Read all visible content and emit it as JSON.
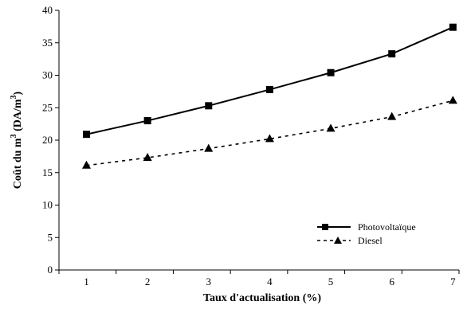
{
  "chart_data": {
    "type": "line",
    "title": "",
    "xlabel": "Taux d'actualisation (%)",
    "ylabel_main": "Coût du m",
    "ylabel_sup1": "3",
    "ylabel_mid": " (DA/m",
    "ylabel_sup2": "3",
    "ylabel_end": ")",
    "x": [
      1,
      2,
      3,
      4,
      5,
      6,
      7
    ],
    "xlim": [
      0.55,
      7.1
    ],
    "ylim": [
      0,
      40
    ],
    "yticks": [
      0,
      5,
      10,
      15,
      20,
      25,
      30,
      35,
      40
    ],
    "grid": false,
    "legend_position": "bottom-right",
    "series": [
      {
        "name": "Photovoltaïque",
        "marker": "square",
        "line": "solid",
        "color": "#000000",
        "values": [
          20.9,
          23.0,
          25.3,
          27.8,
          30.4,
          33.3,
          37.4
        ]
      },
      {
        "name": "Diesel",
        "marker": "triangle",
        "line": "dashed",
        "color": "#000000",
        "values": [
          16.1,
          17.3,
          18.7,
          20.2,
          21.8,
          23.6,
          26.1
        ]
      }
    ]
  }
}
